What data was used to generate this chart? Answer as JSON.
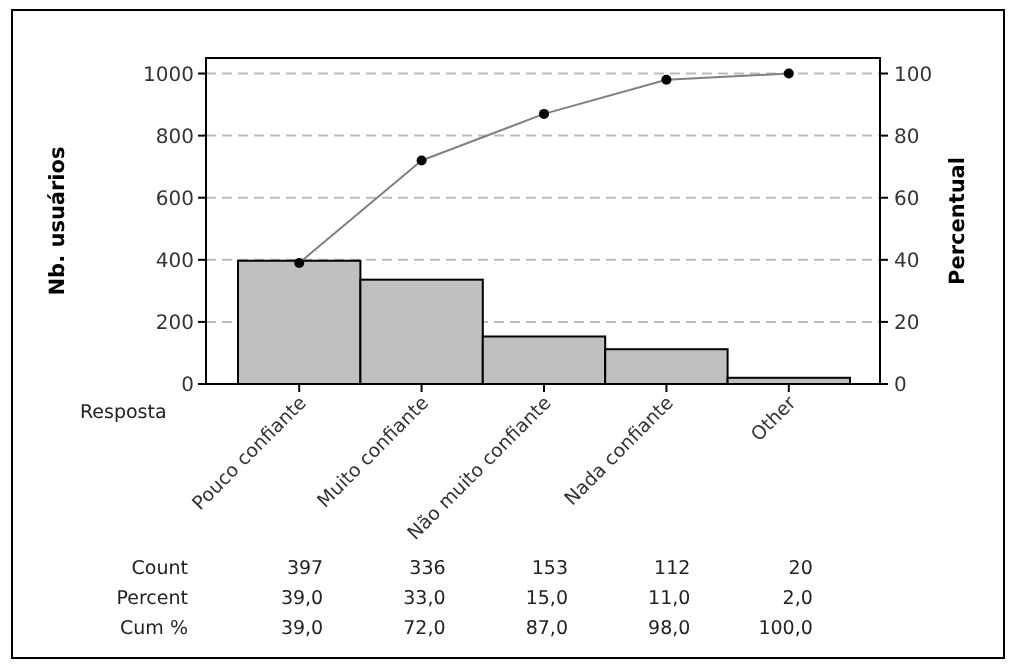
{
  "chart_data": {
    "type": "bar",
    "xlabel": "Resposta",
    "ylabel": "Nb. usuários",
    "y2label": "Percentual",
    "categories": [
      "Pouco confiante",
      "Muito confiante",
      "Não muito confiante",
      "Nada confiante",
      "Other"
    ],
    "series": [
      {
        "color": "#c0c0c0",
        "values": [
          397,
          336,
          153,
          112,
          20
        ],
        "value_labels": [
          "397",
          "336",
          "153",
          "112",
          "20"
        ]
      },
      {
        "type": "line",
        "axis": "y2",
        "color": "#808080",
        "marker": "circle",
        "line_style": "solid",
        "values": [
          39,
          72,
          87,
          98,
          100
        ],
        "value_labels": [
          "39,0",
          "72,0",
          "87,0",
          "98,0",
          "100,0"
        ]
      }
    ],
    "ylim": [
      0,
      1050
    ],
    "yticks": [
      0,
      200,
      400,
      600,
      800,
      1000
    ],
    "y2lim": [
      0,
      105
    ],
    "y2ticks": [
      0,
      20,
      40,
      60,
      80,
      100
    ],
    "grid": "y",
    "annotations": [
      "Count",
      "Percent",
      "Cum %",
      "39,0",
      "33,0",
      "15,0",
      "11,0",
      "2,0"
    ]
  }
}
